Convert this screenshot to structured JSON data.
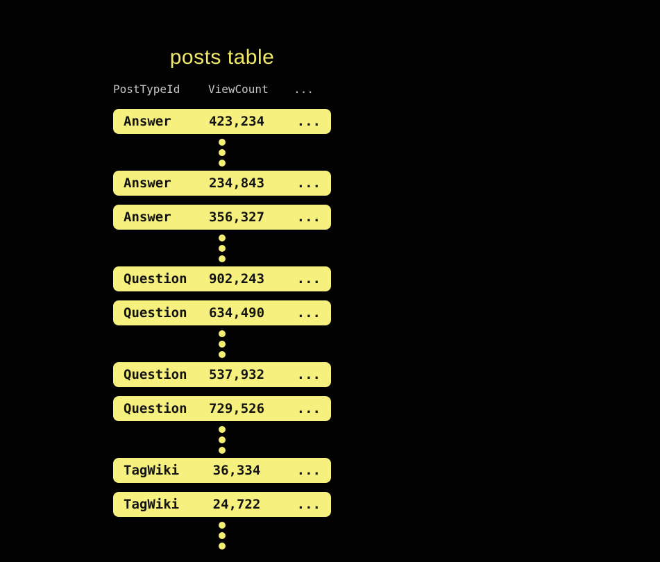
{
  "diagram": {
    "title": "posts table",
    "columns": [
      "PostTypeId",
      "ViewCount",
      "..."
    ],
    "rows": [
      {
        "post_type_id": "Answer",
        "view_count": "423,234",
        "more": "...",
        "ellipsis_after": true
      },
      {
        "post_type_id": "Answer",
        "view_count": "234,843",
        "more": "...",
        "ellipsis_after": false
      },
      {
        "post_type_id": "Answer",
        "view_count": "356,327",
        "more": "...",
        "ellipsis_after": true
      },
      {
        "post_type_id": "Question",
        "view_count": "902,243",
        "more": "...",
        "ellipsis_after": false
      },
      {
        "post_type_id": "Question",
        "view_count": "634,490",
        "more": "...",
        "ellipsis_after": true
      },
      {
        "post_type_id": "Question",
        "view_count": "537,932",
        "more": "...",
        "ellipsis_after": false
      },
      {
        "post_type_id": "Question",
        "view_count": "729,526",
        "more": "...",
        "ellipsis_after": true
      },
      {
        "post_type_id": "TagWiki",
        "view_count": "36,334",
        "more": "...",
        "ellipsis_after": false
      },
      {
        "post_type_id": "TagWiki",
        "view_count": "24,722",
        "more": "...",
        "ellipsis_after": true
      }
    ],
    "colors": {
      "background": "#020203",
      "title_text": "#F0E868",
      "header_text": "#C8C8C8",
      "row_fill": "#F6F07E",
      "row_text": "#121212",
      "dot_fill": "#F4EE74"
    }
  }
}
